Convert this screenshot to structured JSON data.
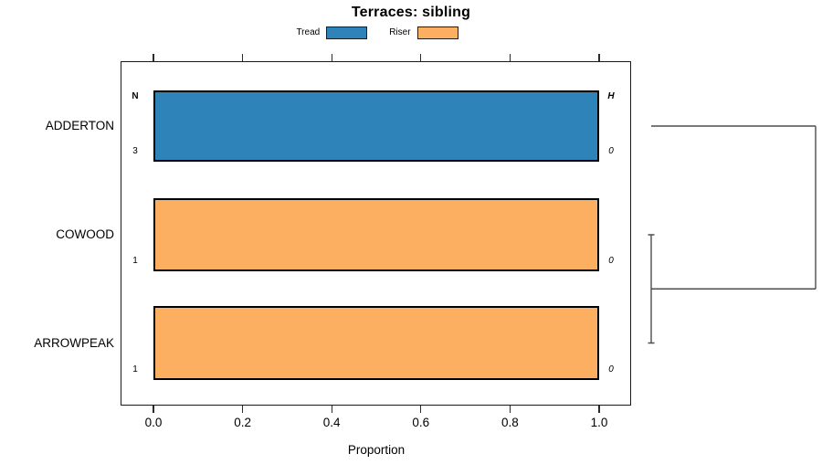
{
  "chart_data": {
    "type": "bar",
    "orientation": "horizontal",
    "title": "Terraces: sibling",
    "xlabel": "Proportion",
    "xlim": [
      0,
      1
    ],
    "x_ticks": [
      "0.0",
      "0.2",
      "0.4",
      "0.6",
      "0.8",
      "1.0"
    ],
    "x_tick_values": [
      0,
      0.2,
      0.4,
      0.6,
      0.8,
      1.0
    ],
    "grid": false,
    "legend_position": "top",
    "legend": [
      {
        "label": "Tread",
        "color": "#2e83b8"
      },
      {
        "label": "Riser",
        "color": "#fcae61"
      }
    ],
    "column_headers": {
      "left": "N",
      "right": "H"
    },
    "rows": [
      {
        "category": "ADDERTON",
        "n": "3",
        "h": "0",
        "segments": [
          {
            "series": "Tread",
            "value": 1.0
          }
        ]
      },
      {
        "category": "COWOOD",
        "n": "1",
        "h": "0",
        "segments": [
          {
            "series": "Riser",
            "value": 1.0
          }
        ]
      },
      {
        "category": "ARROWPEAK",
        "n": "1",
        "h": "0",
        "segments": [
          {
            "series": "Riser",
            "value": 1.0
          }
        ]
      }
    ],
    "dendrogram": {
      "line_color": "#4d4d4d",
      "joins": [
        {
          "members": [
            "COWOOD",
            "ARROWPEAK"
          ],
          "height": 0.0
        },
        {
          "members": [
            "ADDERTON",
            "COWOOD+ARROWPEAK"
          ],
          "height": 1.0
        }
      ]
    }
  }
}
